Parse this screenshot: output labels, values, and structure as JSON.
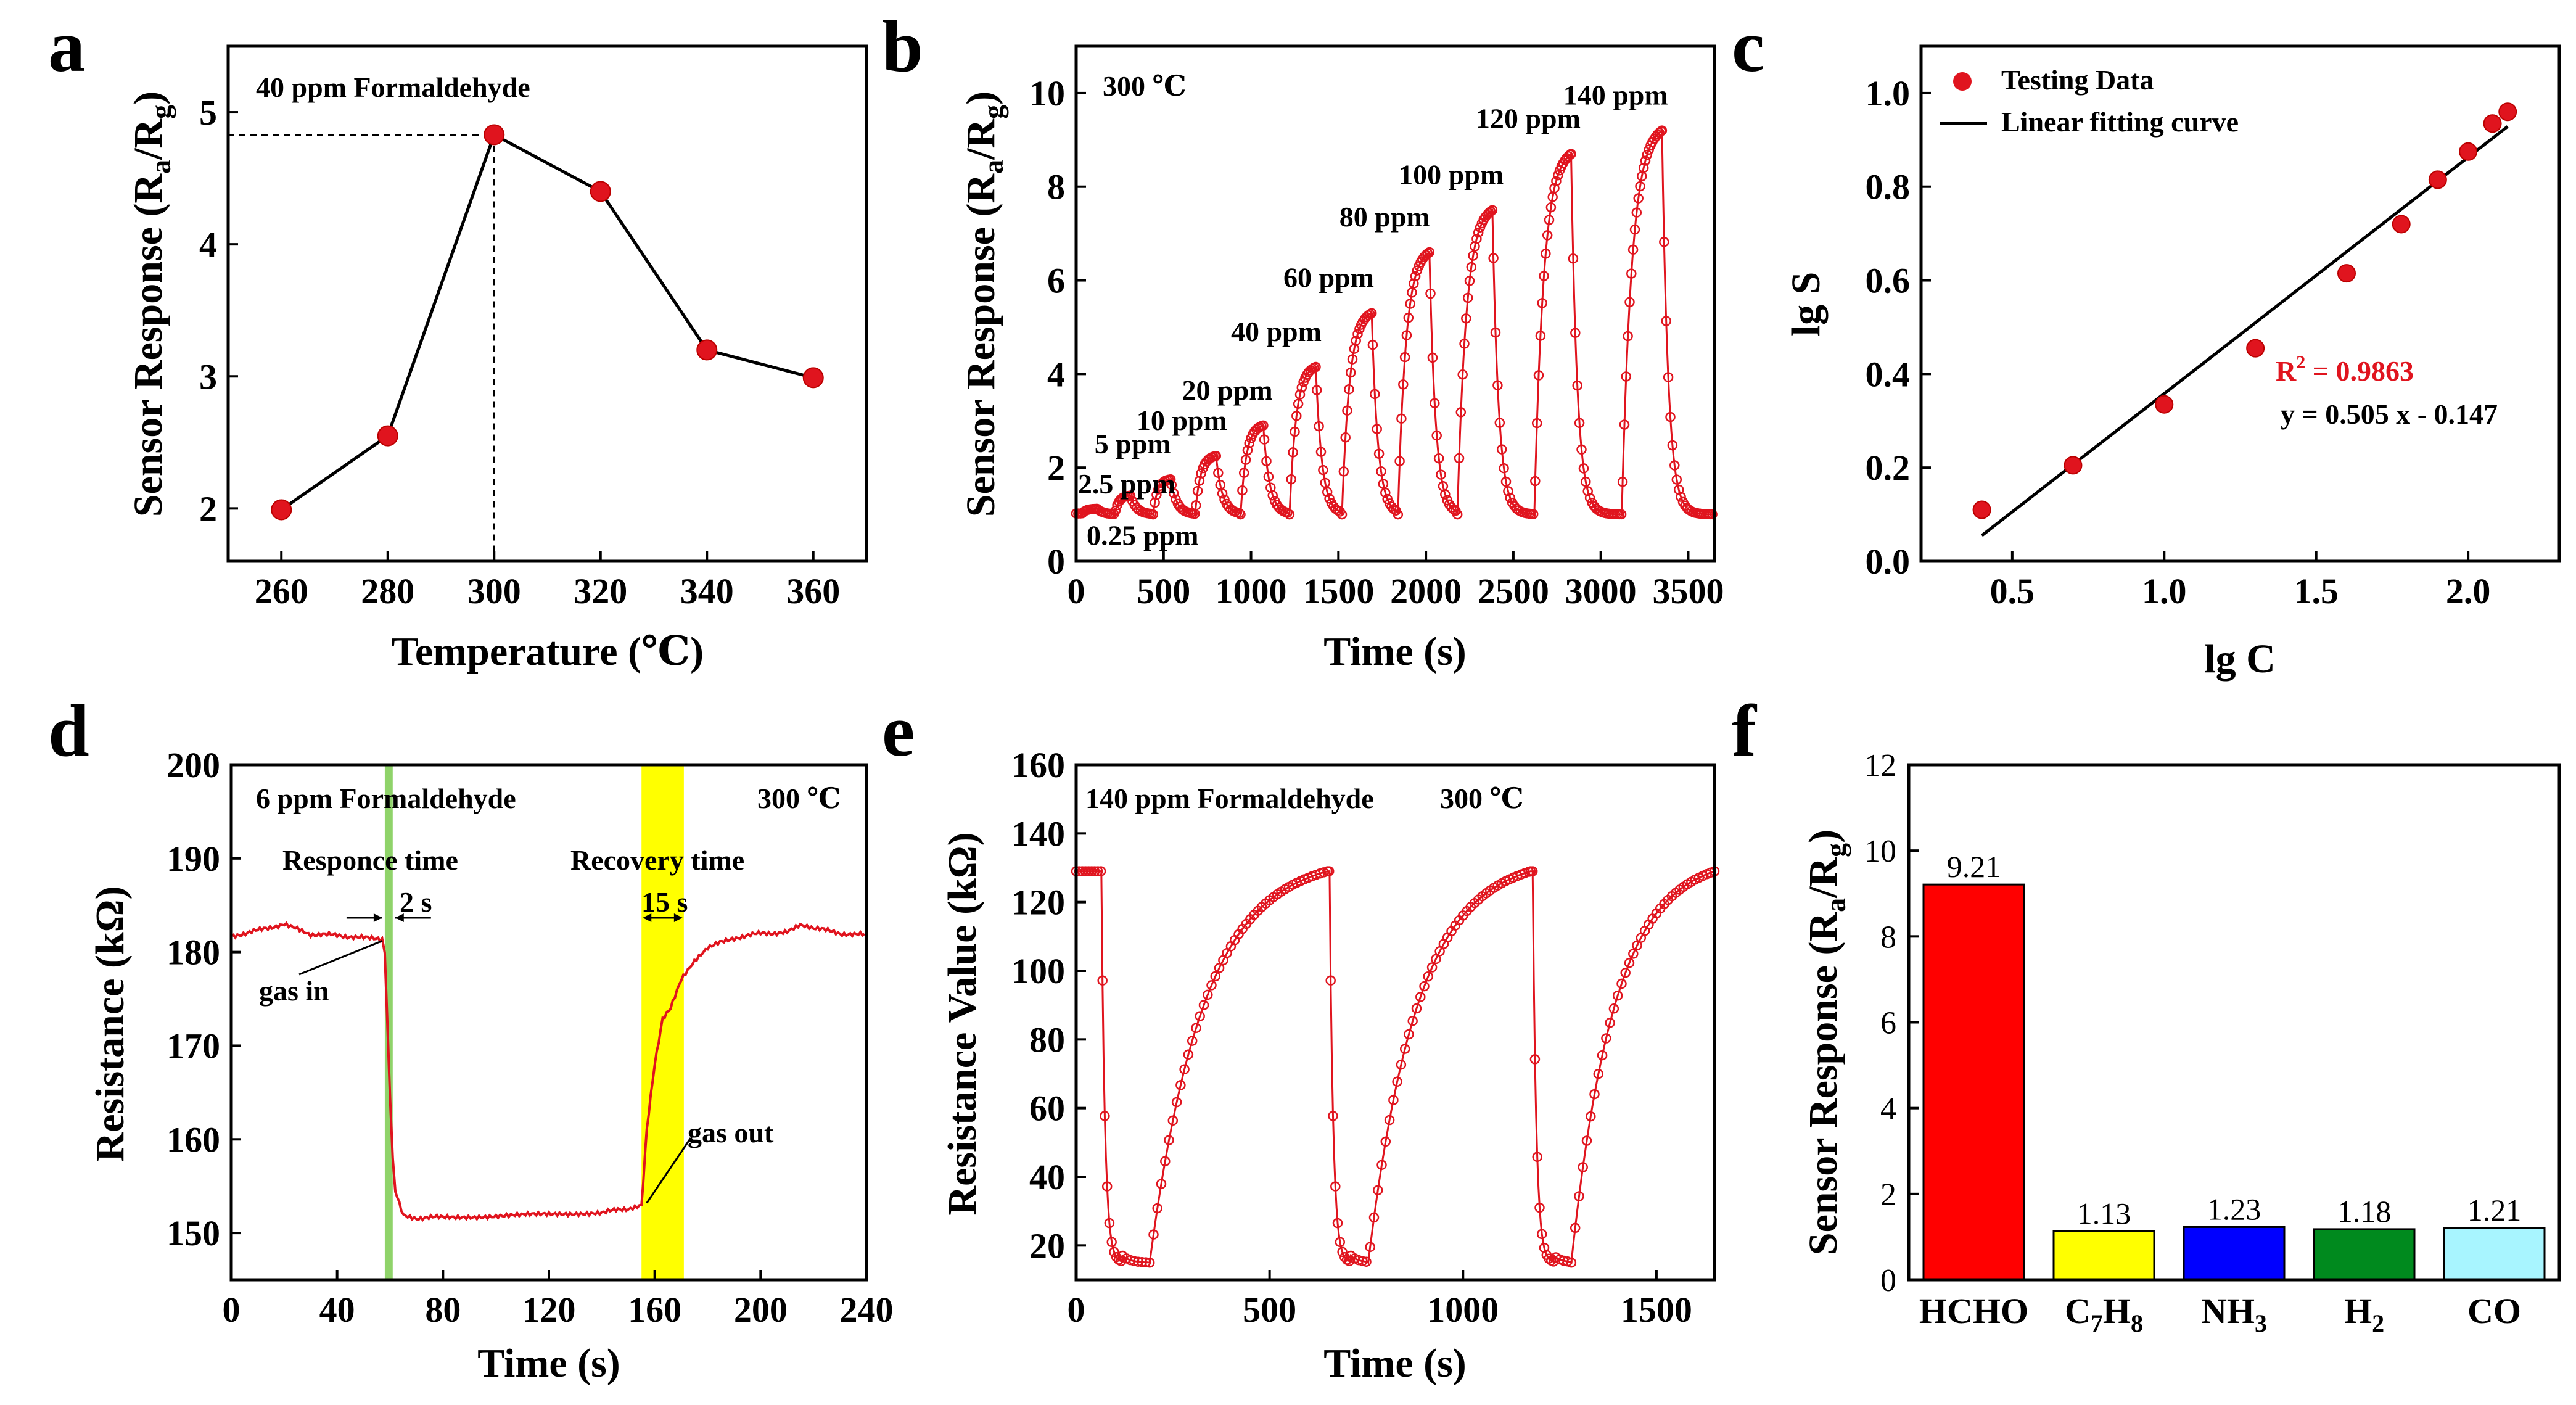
{
  "panels": {
    "a": "a",
    "b": "b",
    "c": "c",
    "d": "d",
    "e": "e",
    "f": "f"
  },
  "colors": {
    "marker": "#e0141e",
    "line": "#000000",
    "green_band": "#8fd36a",
    "yellow_band": "#ffff00",
    "hcho": "#ff0000",
    "c7h8": "#ffff00",
    "nh3": "#0000ff",
    "h2": "#008a1e",
    "co": "#a8f5ff"
  },
  "chart_data": [
    {
      "id": "a",
      "type": "line",
      "title": "40 ppm Formaldehyde",
      "xlabel": "Temperature (℃)",
      "ylabel_main": "Sensor Response (R",
      "ylabel_sub1": "a",
      "ylabel_mid": "/R",
      "ylabel_sub2": "g",
      "ylabel_end": ")",
      "xlim": [
        250,
        370
      ],
      "ylim": [
        1.6,
        5.5
      ],
      "xticks": [
        260,
        280,
        300,
        320,
        340,
        360
      ],
      "yticks": [
        2,
        3,
        4,
        5
      ],
      "x": [
        260,
        280,
        300,
        320,
        340,
        360
      ],
      "y": [
        1.99,
        2.55,
        4.83,
        4.4,
        3.2,
        2.99
      ],
      "optimum": {
        "x": 300,
        "y": 4.83
      }
    },
    {
      "id": "b",
      "type": "line",
      "title": "300 ℃",
      "xlabel": "Time (s)",
      "ylabel_main": "Sensor Response (R",
      "ylabel_sub1": "a",
      "ylabel_mid": "/R",
      "ylabel_sub2": "g",
      "ylabel_end": ")",
      "xlim": [
        0,
        3650
      ],
      "ylim": [
        0,
        11
      ],
      "xticks": [
        0,
        500,
        1000,
        1500,
        2000,
        2500,
        3000,
        3500
      ],
      "yticks": [
        0,
        2,
        4,
        6,
        8,
        10
      ],
      "pulses": [
        {
          "label": "0.25 ppm",
          "start": 30,
          "duration": 90,
          "peak": 1.12
        },
        {
          "label": "2.5 ppm",
          "start": 220,
          "duration": 90,
          "peak": 1.4
        },
        {
          "label": "5 ppm",
          "start": 440,
          "duration": 100,
          "peak": 1.75
        },
        {
          "label": "10 ppm",
          "start": 680,
          "duration": 120,
          "peak": 2.25
        },
        {
          "label": "20 ppm",
          "start": 940,
          "duration": 130,
          "peak": 2.9
        },
        {
          "label": "40 ppm",
          "start": 1220,
          "duration": 150,
          "peak": 4.15
        },
        {
          "label": "60 ppm",
          "start": 1520,
          "duration": 170,
          "peak": 5.3
        },
        {
          "label": "80 ppm",
          "start": 1840,
          "duration": 180,
          "peak": 6.6
        },
        {
          "label": "100 ppm",
          "start": 2180,
          "duration": 200,
          "peak": 7.5
        },
        {
          "label": "120 ppm",
          "start": 2620,
          "duration": 210,
          "peak": 8.7
        },
        {
          "label": "140 ppm",
          "start": 3120,
          "duration": 230,
          "peak": 9.2
        }
      ]
    },
    {
      "id": "c",
      "type": "scatter",
      "xlabel": "lg C",
      "ylabel": "lg S",
      "xlim": [
        0.2,
        2.3
      ],
      "ylim": [
        0,
        1.1
      ],
      "xticks": [
        0.5,
        1.0,
        1.5,
        2.0
      ],
      "xtick_labels": [
        "0.5",
        "1.0",
        "1.5",
        "2.0"
      ],
      "yticks": [
        0,
        0.2,
        0.4,
        0.6,
        0.8,
        1.0
      ],
      "ytick_labels": [
        "0.0",
        "0.2",
        "0.4",
        "0.6",
        "0.8",
        "1.0"
      ],
      "x": [
        0.4,
        0.7,
        1.0,
        1.3,
        1.6,
        1.78,
        1.9,
        2.0,
        2.08,
        2.13
      ],
      "y": [
        0.11,
        0.205,
        0.335,
        0.455,
        0.615,
        0.72,
        0.815,
        0.875,
        0.935,
        0.96
      ],
      "fit": {
        "slope": 0.505,
        "intercept": -0.147,
        "x_from": 0.4,
        "x_to": 2.13
      },
      "legend": [
        "Testing Data",
        "Linear fitting curve"
      ],
      "r2_label": "R",
      "r2_sup": "2",
      "r2_value": " = 0.9863",
      "equation": "y = 0.505 x - 0.147"
    },
    {
      "id": "d",
      "type": "line",
      "title": "6 ppm Formaldehyde",
      "temperature": "300 ℃",
      "xlabel": "Time (s)",
      "ylabel": "Resistance (kΩ)",
      "xlim": [
        0,
        240
      ],
      "ylim": [
        145,
        200
      ],
      "xticks": [
        0,
        40,
        80,
        120,
        160,
        200,
        240
      ],
      "yticks": [
        150,
        160,
        170,
        180,
        190,
        200
      ],
      "response_band": [
        58,
        61
      ],
      "recovery_band": [
        155,
        171
      ],
      "response_label": "Responce time",
      "response_time": "2 s",
      "recovery_label": "Recovery time",
      "recovery_time": "15 s",
      "gas_in": "gas in",
      "gas_out": "gas out",
      "x": [
        0,
        10,
        20,
        25,
        30,
        40,
        50,
        57,
        58,
        59,
        60,
        61,
        62,
        65,
        70,
        80,
        100,
        120,
        140,
        150,
        155,
        157,
        160,
        163,
        166,
        170,
        175,
        180,
        190,
        200,
        210,
        215,
        220,
        230,
        240
      ],
      "y": [
        181.7,
        182.3,
        183.0,
        182.6,
        181.9,
        181.8,
        181.5,
        181.4,
        180.0,
        172.0,
        164.5,
        158.0,
        154.5,
        152.0,
        151.6,
        151.7,
        151.8,
        152.0,
        152.2,
        152.6,
        153.0,
        161.0,
        168.0,
        173.0,
        174.0,
        177.0,
        179.0,
        180.5,
        181.5,
        182.0,
        182.1,
        182.9,
        182.6,
        182.0,
        181.8
      ]
    },
    {
      "id": "e",
      "type": "line",
      "title": "140 ppm Formaldehyde",
      "temperature": "300 ℃",
      "xlabel": "Time (s)",
      "ylabel": "Resistance Value (kΩ)",
      "xlim": [
        0,
        1650
      ],
      "ylim": [
        10,
        160
      ],
      "xticks": [
        0,
        500,
        1000,
        1500
      ],
      "yticks": [
        20,
        40,
        60,
        80,
        100,
        120,
        140,
        160
      ],
      "baseline": 129,
      "floor": 15,
      "cycles": [
        {
          "in": 65,
          "out": 190,
          "end": 650
        },
        {
          "in": 655,
          "out": 755,
          "end": 1175
        },
        {
          "in": 1180,
          "out": 1280,
          "end": 1650
        }
      ]
    },
    {
      "id": "f",
      "type": "bar",
      "ylabel_main": "Sensor Response (R",
      "ylabel_sub1": "a",
      "ylabel_mid": "/R",
      "ylabel_sub2": "g",
      "ylabel_end": ")",
      "ylim": [
        0,
        12
      ],
      "yticks": [
        0,
        2,
        4,
        6,
        8,
        10,
        12
      ],
      "categories": [
        {
          "main": "HCHO",
          "sub": ""
        },
        {
          "main": "C",
          "sub": "7",
          "main2": "H",
          "sub2": "8"
        },
        {
          "main": "NH",
          "sub": "3"
        },
        {
          "main": "H",
          "sub": "2"
        },
        {
          "main": "CO",
          "sub": ""
        }
      ],
      "values": [
        9.21,
        1.13,
        1.23,
        1.18,
        1.21
      ],
      "value_labels": [
        "9.21",
        "1.13",
        "1.23",
        "1.18",
        "1.21"
      ]
    }
  ]
}
